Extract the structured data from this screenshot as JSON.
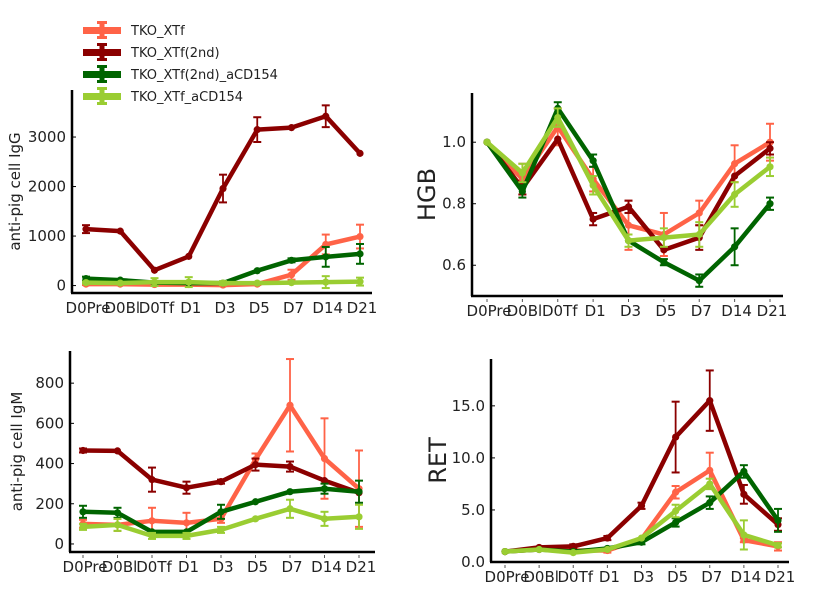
{
  "legend": {
    "entries": [
      {
        "label": "TKO_XTf",
        "color": "#ff6347"
      },
      {
        "label": "TKO_XTf(2nd)",
        "color": "#8b0000"
      },
      {
        "label": "TKO_XTf(2nd)_aCD154",
        "color": "#006400"
      },
      {
        "label": "TKO_XTf_aCD154",
        "color": "#9acd32"
      }
    ]
  },
  "chart_data": [
    {
      "type": "line",
      "title": "",
      "xlabel": "",
      "ylabel": "anti-pig cell IgG",
      "categories": [
        "D0Pre",
        "D0Bl",
        "D0Tf",
        "D1",
        "D3",
        "D5",
        "D7",
        "D14",
        "D21"
      ],
      "yticks": [
        "0",
        "1000",
        "2000",
        "3000"
      ],
      "ylim": [
        -150,
        3950
      ],
      "grid": false,
      "series": [
        {
          "name": "TKO_XTf",
          "values": [
            30,
            30,
            20,
            20,
            10,
            30,
            220,
            830,
            990
          ],
          "errors": [
            20,
            20,
            20,
            20,
            20,
            20,
            100,
            200,
            240
          ]
        },
        {
          "name": "TKO_XTf(2nd)",
          "values": [
            1140,
            1100,
            310,
            590,
            1960,
            3150,
            3190,
            3420,
            2670
          ],
          "errors": [
            80,
            0,
            0,
            0,
            280,
            250,
            0,
            220,
            0
          ]
        },
        {
          "name": "TKO_XTf(2nd)_aCD154",
          "values": [
            140,
            110,
            60,
            50,
            50,
            300,
            510,
            580,
            640
          ],
          "errors": [
            40,
            0,
            0,
            0,
            0,
            0,
            40,
            200,
            200
          ]
        },
        {
          "name": "TKO_XTf_aCD154",
          "values": [
            60,
            50,
            70,
            70,
            50,
            50,
            60,
            70,
            80
          ],
          "errors": [
            20,
            20,
            80,
            100,
            40,
            20,
            20,
            120,
            80
          ]
        }
      ]
    },
    {
      "type": "line",
      "title": "",
      "xlabel": "",
      "ylabel": "HGB",
      "categories": [
        "D0Pre",
        "D0Bl",
        "D0Tf",
        "D1",
        "D3",
        "D5",
        "D7",
        "D14",
        "D21"
      ],
      "yticks": [
        "0.6",
        "0.8",
        "1.0"
      ],
      "ylim": [
        0.5,
        1.16
      ],
      "grid": false,
      "series": [
        {
          "name": "TKO_XTf",
          "values": [
            1.0,
            0.88,
            1.05,
            0.88,
            0.73,
            0.7,
            0.77,
            0.93,
            1.0
          ],
          "errors": [
            0,
            0.05,
            0.06,
            0.04,
            0.08,
            0.07,
            0.04,
            0.06,
            0.06
          ]
        },
        {
          "name": "TKO_XTf(2nd)",
          "values": [
            1.0,
            0.85,
            1.01,
            0.75,
            0.79,
            0.65,
            0.69,
            0.89,
            0.98
          ],
          "errors": [
            0,
            0.02,
            0,
            0.02,
            0.02,
            0,
            0.04,
            0,
            0.02
          ]
        },
        {
          "name": "TKO_XTf(2nd)_aCD154",
          "values": [
            1.0,
            0.84,
            1.11,
            0.94,
            0.68,
            0.61,
            0.55,
            0.66,
            0.8
          ],
          "errors": [
            0,
            0.02,
            0.02,
            0.02,
            0,
            0.01,
            0.02,
            0.06,
            0.02
          ]
        },
        {
          "name": "TKO_XTf_aCD154",
          "values": [
            1.0,
            0.9,
            1.08,
            0.86,
            0.68,
            0.69,
            0.7,
            0.83,
            0.92
          ],
          "errors": [
            0,
            0.03,
            0.03,
            0.03,
            0.02,
            0.03,
            0.04,
            0.04,
            0.03
          ]
        }
      ]
    },
    {
      "type": "line",
      "title": "",
      "xlabel": "",
      "ylabel": "anti-pig cell IgM",
      "categories": [
        "D0Pre",
        "D0Bl",
        "D0Tf",
        "D1",
        "D3",
        "D5",
        "D7",
        "D14",
        "D21"
      ],
      "yticks": [
        "0",
        "200",
        "400",
        "600",
        "800"
      ],
      "ylim": [
        -40,
        960
      ],
      "grid": false,
      "series": [
        {
          "name": "TKO_XTf",
          "values": [
            100,
            95,
            115,
            105,
            125,
            420,
            690,
            425,
            275
          ],
          "errors": [
            20,
            30,
            65,
            50,
            20,
            30,
            230,
            200,
            190
          ]
        },
        {
          "name": "TKO_XTf(2nd)",
          "values": [
            465,
            463,
            320,
            280,
            310,
            395,
            385,
            315,
            255
          ],
          "errors": [
            10,
            0,
            60,
            30,
            10,
            30,
            25,
            0,
            0
          ]
        },
        {
          "name": "TKO_XTf(2nd)_aCD154",
          "values": [
            160,
            155,
            60,
            60,
            160,
            210,
            260,
            275,
            260
          ],
          "errors": [
            30,
            25,
            0,
            0,
            35,
            0,
            0,
            25,
            55
          ]
        },
        {
          "name": "TKO_XTf_aCD154",
          "values": [
            85,
            95,
            40,
            40,
            70,
            125,
            175,
            125,
            135
          ],
          "errors": [
            15,
            30,
            15,
            15,
            15,
            0,
            45,
            35,
            60
          ]
        }
      ]
    },
    {
      "type": "line",
      "title": "",
      "xlabel": "",
      "ylabel": "RET",
      "categories": [
        "D0Pre",
        "D0Bl",
        "D0Tf",
        "D1",
        "D3",
        "D5",
        "D7",
        "D14",
        "D21"
      ],
      "yticks": [
        "0.0",
        "5.0",
        "10.0",
        "15.0"
      ],
      "ylim": [
        0,
        19.5
      ],
      "grid": false,
      "series": [
        {
          "name": "TKO_XTf",
          "values": [
            1.0,
            1.2,
            1.1,
            1.1,
            2.2,
            6.7,
            8.8,
            2.1,
            1.5
          ],
          "errors": [
            0,
            0,
            0.2,
            0.2,
            0,
            0.6,
            1.7,
            0.2,
            0.4
          ]
        },
        {
          "name": "TKO_XTf(2nd)",
          "values": [
            1.0,
            1.4,
            1.5,
            2.3,
            5.4,
            12.0,
            15.5,
            6.5,
            3.6
          ],
          "errors": [
            0,
            0,
            0.2,
            0.2,
            0.3,
            3.4,
            2.9,
            0.9,
            0.6
          ]
        },
        {
          "name": "TKO_XTf(2nd)_aCD154",
          "values": [
            1.0,
            1.2,
            1.0,
            1.3,
            1.9,
            3.8,
            5.7,
            8.7,
            4.0
          ],
          "errors": [
            0,
            0,
            0,
            0,
            0.2,
            0.4,
            0.6,
            0.6,
            1.1
          ]
        },
        {
          "name": "TKO_XTf_aCD154",
          "values": [
            1.0,
            1.2,
            0.9,
            1.2,
            2.3,
            4.9,
            7.5,
            2.6,
            1.6
          ],
          "errors": [
            0,
            0,
            0,
            0,
            0,
            0.6,
            0.5,
            1.4,
            0.2
          ]
        }
      ]
    }
  ]
}
